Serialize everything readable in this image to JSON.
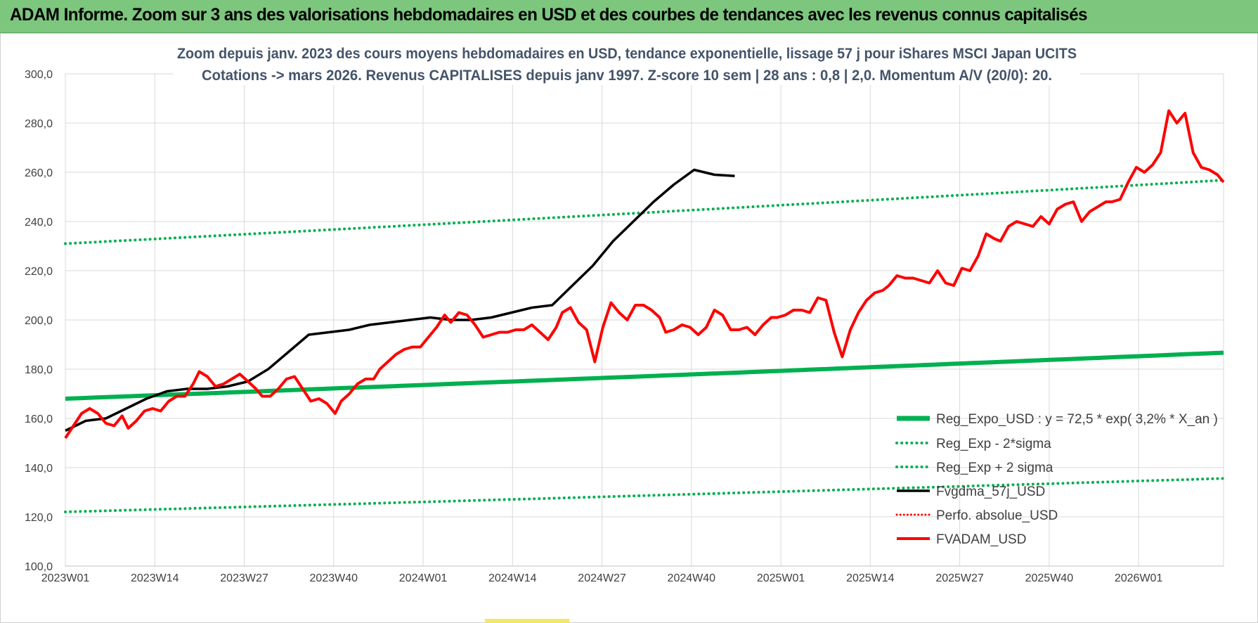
{
  "banner": {
    "title": "ADAM Informe. Zoom sur 3 ans des valorisations hebdomadaires en USD et des courbes de tendances avec les revenus connus capitalisés"
  },
  "chart_data": {
    "type": "line",
    "title": "Zoom depuis janv. 2023 des cours moyens hebdomadaires en USD, tendance exponentielle, lissage 57 j pour iShares MSCI Japan UCITS",
    "subtitle": "Cotations -> mars 2026. Revenus CAPITALISES depuis janv 1997. Z-score 10 sem | 28 ans : 0,8 | 2,0. Momentum A/V (20/0): 20.",
    "ylim": [
      100,
      300
    ],
    "y_ticks": [
      "100,0",
      "120,0",
      "140,0",
      "160,0",
      "180,0",
      "200,0",
      "220,0",
      "240,0",
      "260,0",
      "280,0",
      "300,0"
    ],
    "x_ticks": [
      "2023W01",
      "2023W14",
      "2023W27",
      "2023W40",
      "2024W01",
      "2024W14",
      "2024W27",
      "2024W40",
      "2025W01",
      "2025W14",
      "2025W27",
      "2025W40",
      "2026W01"
    ],
    "n_points": 168,
    "grid": true,
    "legend_position": "bottom-right",
    "colors": {
      "green": "#00b050",
      "black": "#000000",
      "red": "#ff0000"
    },
    "series": [
      {
        "name": "Reg_Expo_USD : y = 72,5 * exp( 3,2% *  X_an )",
        "style": "thick-solid",
        "color": "#00b050",
        "start": 168,
        "end": 186.7
      },
      {
        "name": "Reg_Exp - 2*sigma",
        "style": "dotted",
        "color": "#00b050",
        "start": 122,
        "end": 135.6
      },
      {
        "name": "Reg_Exp + 2 sigma",
        "style": "dotted",
        "color": "#00b050",
        "start": 231,
        "end": 256.8
      },
      {
        "name": "Fvgdma_57j_USD",
        "style": "solid",
        "color": "#000000",
        "keypoints": [
          [
            0,
            155
          ],
          [
            10,
            159
          ],
          [
            20,
            160
          ],
          [
            30,
            164
          ],
          [
            40,
            168
          ],
          [
            50,
            171
          ],
          [
            60,
            172
          ],
          [
            70,
            172
          ],
          [
            80,
            173
          ],
          [
            90,
            175
          ],
          [
            100,
            180
          ],
          [
            110,
            187
          ],
          [
            120,
            194
          ],
          [
            130,
            195
          ],
          [
            140,
            196
          ],
          [
            150,
            198
          ],
          [
            160,
            199
          ],
          [
            170,
            200
          ],
          [
            180,
            201
          ],
          [
            190,
            200
          ],
          [
            200,
            200
          ],
          [
            210,
            201
          ],
          [
            220,
            203
          ],
          [
            230,
            205
          ],
          [
            240,
            206
          ],
          [
            250,
            214
          ],
          [
            260,
            222
          ],
          [
            270,
            232
          ],
          [
            280,
            240
          ],
          [
            290,
            248
          ],
          [
            300,
            255
          ],
          [
            310,
            261
          ],
          [
            320,
            259
          ],
          [
            330,
            258.5
          ]
        ]
      },
      {
        "name": "Perfo. absolue_USD",
        "style": "dotted",
        "color": "#ff0000"
      },
      {
        "name": "FVADAM_USD",
        "style": "thick-solid",
        "color": "#ff0000",
        "points": [
          [
            0,
            152
          ],
          [
            4,
            157
          ],
          [
            8,
            162
          ],
          [
            12,
            164
          ],
          [
            16,
            162
          ],
          [
            20,
            158
          ],
          [
            24,
            157
          ],
          [
            28,
            161
          ],
          [
            31,
            156
          ],
          [
            35,
            159
          ],
          [
            39,
            163
          ],
          [
            43,
            164
          ],
          [
            47,
            163
          ],
          [
            51,
            167
          ],
          [
            55,
            169
          ],
          [
            59,
            169
          ],
          [
            63,
            174
          ],
          [
            66,
            179
          ],
          [
            70,
            177
          ],
          [
            74,
            173
          ],
          [
            78,
            174
          ],
          [
            82,
            176
          ],
          [
            86,
            178
          ],
          [
            90,
            175
          ],
          [
            94,
            172
          ],
          [
            97,
            169
          ],
          [
            101,
            169
          ],
          [
            105,
            172
          ],
          [
            109,
            176
          ],
          [
            113,
            177
          ],
          [
            117,
            172
          ],
          [
            121,
            167
          ],
          [
            125,
            168
          ],
          [
            129,
            166
          ],
          [
            133,
            162
          ],
          [
            136,
            167
          ],
          [
            140,
            170
          ],
          [
            144,
            174
          ],
          [
            148,
            176
          ],
          [
            152,
            176
          ],
          [
            155,
            180
          ],
          [
            159,
            183
          ],
          [
            163,
            186
          ],
          [
            167,
            188
          ],
          [
            171,
            189
          ],
          [
            175,
            189
          ],
          [
            179,
            193
          ],
          [
            183,
            197
          ],
          [
            187,
            202
          ],
          [
            190,
            199
          ],
          [
            194,
            203
          ],
          [
            198,
            202
          ],
          [
            202,
            198
          ],
          [
            206,
            193
          ],
          [
            210,
            194
          ],
          [
            214,
            195
          ],
          [
            218,
            195
          ],
          [
            222,
            196
          ],
          [
            226,
            196
          ],
          [
            230,
            198
          ],
          [
            234,
            195
          ],
          [
            238,
            192
          ],
          [
            242,
            197
          ],
          [
            245,
            203
          ],
          [
            249,
            205
          ],
          [
            253,
            199
          ],
          [
            257,
            196
          ],
          [
            261,
            183
          ],
          [
            265,
            197
          ],
          [
            269,
            207
          ],
          [
            273,
            203
          ],
          [
            277,
            200
          ],
          [
            281,
            206
          ],
          [
            285,
            206
          ],
          [
            289,
            204
          ],
          [
            293,
            201
          ],
          [
            296,
            195
          ],
          [
            300,
            196
          ],
          [
            304,
            198
          ],
          [
            308,
            197
          ],
          [
            312,
            194
          ],
          [
            316,
            197
          ],
          [
            320,
            204
          ],
          [
            324,
            202
          ],
          [
            328,
            196
          ],
          [
            332,
            196
          ],
          [
            336,
            197
          ],
          [
            340,
            194
          ],
          [
            344,
            198
          ],
          [
            348,
            201
          ],
          [
            351,
            201
          ],
          [
            355,
            202
          ],
          [
            359,
            204
          ],
          [
            363,
            204
          ],
          [
            367,
            203
          ],
          [
            371,
            209
          ],
          [
            375,
            208
          ],
          [
            379,
            195
          ],
          [
            383,
            185
          ],
          [
            387,
            196
          ],
          [
            391,
            203
          ],
          [
            395,
            208
          ],
          [
            399,
            211
          ],
          [
            403,
            212
          ],
          [
            406,
            214
          ],
          [
            410,
            218
          ],
          [
            414,
            217
          ],
          [
            418,
            217
          ],
          [
            422,
            216
          ],
          [
            426,
            215
          ],
          [
            430,
            220
          ],
          [
            434,
            215
          ],
          [
            438,
            214
          ],
          [
            442,
            221
          ],
          [
            446,
            220
          ],
          [
            450,
            226
          ],
          [
            454,
            235
          ],
          [
            458,
            233
          ],
          [
            461,
            232
          ],
          [
            465,
            238
          ],
          [
            469,
            240
          ],
          [
            473,
            239
          ],
          [
            477,
            238
          ],
          [
            481,
            242
          ],
          [
            485,
            239
          ],
          [
            489,
            245
          ],
          [
            493,
            247
          ],
          [
            497,
            248
          ],
          [
            501,
            240
          ],
          [
            505,
            244
          ],
          [
            509,
            246
          ],
          [
            513,
            248
          ],
          [
            516,
            248
          ],
          [
            520,
            249
          ],
          [
            524,
            256
          ],
          [
            528,
            262
          ],
          [
            532,
            260
          ],
          [
            536,
            263
          ],
          [
            540,
            268
          ],
          [
            544,
            285
          ],
          [
            548,
            280
          ],
          [
            552,
            284
          ],
          [
            556,
            268
          ],
          [
            560,
            262
          ],
          [
            564,
            261
          ],
          [
            568,
            259
          ],
          [
            571,
            256
          ]
        ]
      }
    ]
  }
}
